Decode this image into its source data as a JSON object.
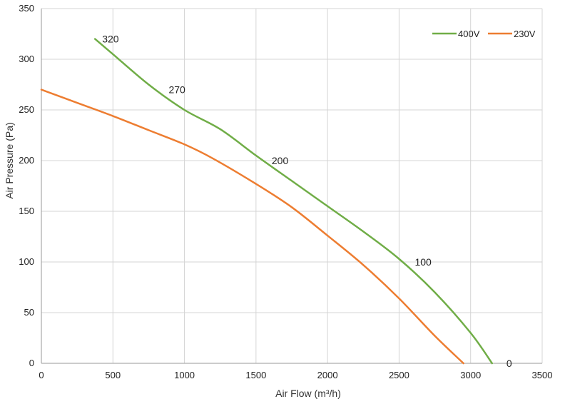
{
  "chart_data": {
    "type": "line",
    "xlabel": "Air Flow  (m³/h)",
    "ylabel": "Air Pressure  (Pa)",
    "xlim": [
      0,
      3500
    ],
    "ylim": [
      0,
      350
    ],
    "x_ticks": [
      "0",
      "500",
      "1000",
      "1500",
      "2000",
      "2500",
      "3000",
      "3500"
    ],
    "y_ticks": [
      "0",
      "50",
      "100",
      "150",
      "200",
      "250",
      "300",
      "350"
    ],
    "grid": true,
    "legend_position": "top-right",
    "series": [
      {
        "name": "400V",
        "color": "#70ad47",
        "points": [
          [
            375,
            320
          ],
          [
            500,
            305
          ],
          [
            750,
            275
          ],
          [
            1000,
            250
          ],
          [
            1250,
            231
          ],
          [
            1500,
            205
          ],
          [
            1750,
            180
          ],
          [
            2000,
            155
          ],
          [
            2250,
            130
          ],
          [
            2500,
            103
          ],
          [
            2750,
            70
          ],
          [
            3000,
            30
          ],
          [
            3150,
            0
          ]
        ]
      },
      {
        "name": "230V",
        "color": "#ed7d31",
        "points": [
          [
            0,
            270
          ],
          [
            250,
            257
          ],
          [
            500,
            244
          ],
          [
            750,
            230
          ],
          [
            1000,
            216
          ],
          [
            1200,
            202
          ],
          [
            1500,
            177
          ],
          [
            1750,
            154
          ],
          [
            2000,
            126
          ],
          [
            2250,
            97
          ],
          [
            2500,
            64
          ],
          [
            2750,
            27
          ],
          [
            2950,
            0
          ]
        ]
      }
    ],
    "annotations": [
      {
        "text": "320",
        "x": 375,
        "y": 320
      },
      {
        "text": "270",
        "x": 840,
        "y": 270
      },
      {
        "text": "200",
        "x": 1560,
        "y": 200
      },
      {
        "text": "100",
        "x": 2560,
        "y": 100
      },
      {
        "text": "0",
        "x": 3200,
        "y": 0
      }
    ]
  }
}
